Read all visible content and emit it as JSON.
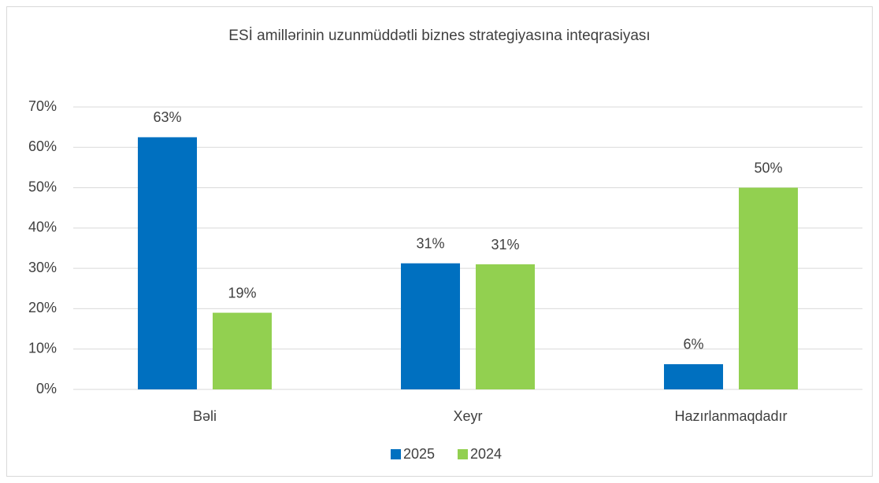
{
  "chart_data": {
    "type": "bar",
    "title": "ESİ amillərinin uzunmüddətli biznes strategiyasına inteqrasiyası",
    "categories": [
      "Bəli",
      "Xeyr",
      "Hazırlanmaqdadır"
    ],
    "series": [
      {
        "name": "2025",
        "color": "#0070c0",
        "values": [
          62.5,
          31.25,
          6.25
        ],
        "value_labels": [
          "63%",
          "31%",
          "6%"
        ]
      },
      {
        "name": "2024",
        "color": "#92d050",
        "values": [
          19,
          31,
          50
        ],
        "value_labels": [
          "19%",
          "31%",
          "50%"
        ]
      }
    ],
    "ylim": [
      0,
      70
    ],
    "yticks": [
      {
        "value": 0,
        "label": "0%"
      },
      {
        "value": 10,
        "label": "10%"
      },
      {
        "value": 20,
        "label": "20%"
      },
      {
        "value": 30,
        "label": "30%"
      },
      {
        "value": 40,
        "label": "40%"
      },
      {
        "value": 50,
        "label": "50%"
      },
      {
        "value": 60,
        "label": "60%"
      },
      {
        "value": 70,
        "label": "70%"
      }
    ],
    "grid": true,
    "legend": "bottom"
  }
}
